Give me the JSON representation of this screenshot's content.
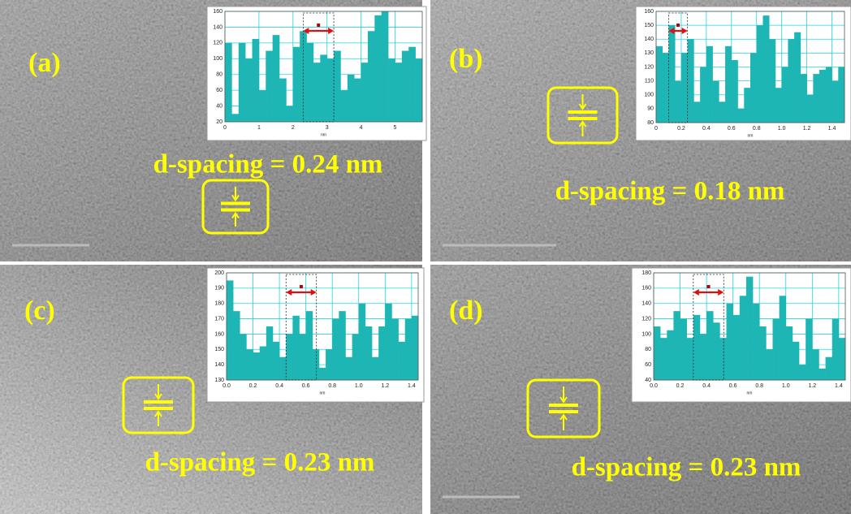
{
  "chart_data": [
    {
      "type": "histogram",
      "panel_label": "(a)",
      "annotation": "d-spacing = 0.24 nm",
      "xlabel": "nm",
      "color": "#1eb6b4",
      "grid_color": "#22d3e6",
      "bins": [
        0,
        0.2,
        0.4,
        0.6,
        0.8,
        1.0,
        1.2,
        1.4,
        1.6,
        1.8,
        2.0,
        2.2,
        2.4,
        2.6,
        2.8,
        3.0,
        3.2,
        3.4,
        3.6,
        3.8,
        4.0,
        4.2,
        4.4,
        4.6,
        4.8,
        5.0,
        5.2,
        5.4,
        5.6,
        5.8
      ],
      "values": [
        120,
        30,
        120,
        100,
        125,
        60,
        110,
        130,
        75,
        40,
        115,
        135,
        120,
        95,
        105,
        100,
        110,
        60,
        80,
        75,
        95,
        135,
        155,
        160,
        100,
        95,
        110,
        115,
        100
      ],
      "xlim": [
        0,
        5.8
      ],
      "xticks": [
        0,
        1,
        2,
        3,
        4,
        5
      ],
      "ylim": [
        20,
        160
      ],
      "yticks": [
        20,
        40,
        60,
        80,
        100,
        120,
        140,
        160
      ],
      "highlight_range": [
        2.3,
        3.2
      ]
    },
    {
      "type": "histogram",
      "panel_label": "(b)",
      "annotation": "d-spacing = 0.18 nm",
      "xlabel": "nm",
      "color": "#1eb6b4",
      "grid_color": "#22d3e6",
      "bins": [
        0,
        0.05,
        0.1,
        0.15,
        0.2,
        0.25,
        0.3,
        0.35,
        0.4,
        0.45,
        0.5,
        0.55,
        0.6,
        0.65,
        0.7,
        0.75,
        0.8,
        0.85,
        0.9,
        0.95,
        1.0,
        1.05,
        1.1,
        1.15,
        1.2,
        1.25,
        1.3,
        1.35,
        1.4,
        1.45,
        1.5
      ],
      "values": [
        135,
        130,
        150,
        110,
        130,
        140,
        95,
        120,
        135,
        110,
        95,
        135,
        125,
        90,
        105,
        130,
        150,
        157,
        140,
        105,
        120,
        140,
        145,
        115,
        100,
        115,
        118,
        120,
        110,
        120
      ],
      "xlim": [
        0,
        1.5
      ],
      "xticks": [
        0,
        {
          "value": 0.2,
          "label": "0.2"
        },
        {
          "value": 0.4,
          "label": "0.4"
        },
        {
          "value": 0.6,
          "label": "0.6"
        },
        {
          "value": 0.8,
          "label": "0.8"
        },
        {
          "value": 1,
          "label": "1.0"
        },
        {
          "value": 1.2,
          "label": "1.2"
        },
        {
          "value": 1.4,
          "label": "1.4"
        }
      ],
      "ylim": [
        80,
        160
      ],
      "yticks": [
        80,
        90,
        100,
        110,
        120,
        130,
        140,
        150,
        160
      ],
      "highlight_range": [
        0.1,
        0.25
      ]
    },
    {
      "type": "histogram",
      "panel_label": "(c)",
      "annotation": "d-spacing = 0.23 nm",
      "xlabel": "nm",
      "color": "#1eb6b4",
      "grid_color": "#22d3e6",
      "bins": [
        0,
        0.05,
        0.1,
        0.15,
        0.2,
        0.25,
        0.3,
        0.35,
        0.4,
        0.45,
        0.5,
        0.55,
        0.6,
        0.65,
        0.7,
        0.75,
        0.8,
        0.85,
        0.9,
        0.95,
        1.0,
        1.05,
        1.1,
        1.15,
        1.2,
        1.25,
        1.3,
        1.35,
        1.4,
        1.45
      ],
      "values": [
        195,
        175,
        160,
        150,
        148,
        152,
        165,
        155,
        145,
        160,
        172,
        160,
        175,
        150,
        138,
        150,
        170,
        175,
        145,
        160,
        180,
        165,
        145,
        165,
        180,
        170,
        155,
        170,
        172
      ],
      "xlim": [
        0,
        1.45
      ],
      "xticks": [
        {
          "value": 0,
          "label": "0.0"
        },
        {
          "value": 0.2,
          "label": "0.2"
        },
        {
          "value": 0.4,
          "label": "0.4"
        },
        {
          "value": 0.6,
          "label": "0.6"
        },
        {
          "value": 0.8,
          "label": "0.8"
        },
        {
          "value": 1,
          "label": "1.0"
        },
        {
          "value": 1.2,
          "label": "1.2"
        },
        {
          "value": 1.4,
          "label": "1.4"
        }
      ],
      "ylim": [
        130,
        200
      ],
      "yticks": [
        130,
        140,
        150,
        160,
        170,
        180,
        190,
        200
      ],
      "highlight_range": [
        0.45,
        0.68
      ]
    },
    {
      "type": "histogram",
      "panel_label": "(d)",
      "annotation": "d-spacing = 0.23 nm",
      "xlabel": "nm",
      "color": "#1eb6b4",
      "grid_color": "#22d3e6",
      "bins": [
        0,
        0.05,
        0.1,
        0.15,
        0.2,
        0.25,
        0.3,
        0.35,
        0.4,
        0.45,
        0.5,
        0.55,
        0.6,
        0.65,
        0.7,
        0.75,
        0.8,
        0.85,
        0.9,
        0.95,
        1.0,
        1.05,
        1.1,
        1.15,
        1.2,
        1.25,
        1.3,
        1.35,
        1.4,
        1.45
      ],
      "values": [
        110,
        95,
        105,
        130,
        120,
        95,
        125,
        100,
        130,
        115,
        95,
        140,
        125,
        150,
        175,
        140,
        110,
        80,
        120,
        150,
        110,
        90,
        60,
        120,
        80,
        55,
        70,
        120,
        95
      ],
      "xlim": [
        0,
        1.45
      ],
      "xticks": [
        {
          "value": 0,
          "label": "0.0"
        },
        {
          "value": 0.2,
          "label": "0.2"
        },
        {
          "value": 0.4,
          "label": "0.4"
        },
        {
          "value": 0.6,
          "label": "0.6"
        },
        {
          "value": 0.8,
          "label": "0.8"
        },
        {
          "value": 1,
          "label": "1.0"
        },
        {
          "value": 1.2,
          "label": "1.2"
        },
        {
          "value": 1.4,
          "label": "1.4"
        }
      ],
      "ylim": [
        40,
        180
      ],
      "yticks": [
        40,
        60,
        80,
        100,
        120,
        140,
        160,
        180
      ],
      "highlight_range": [
        0.3,
        0.53
      ]
    }
  ]
}
